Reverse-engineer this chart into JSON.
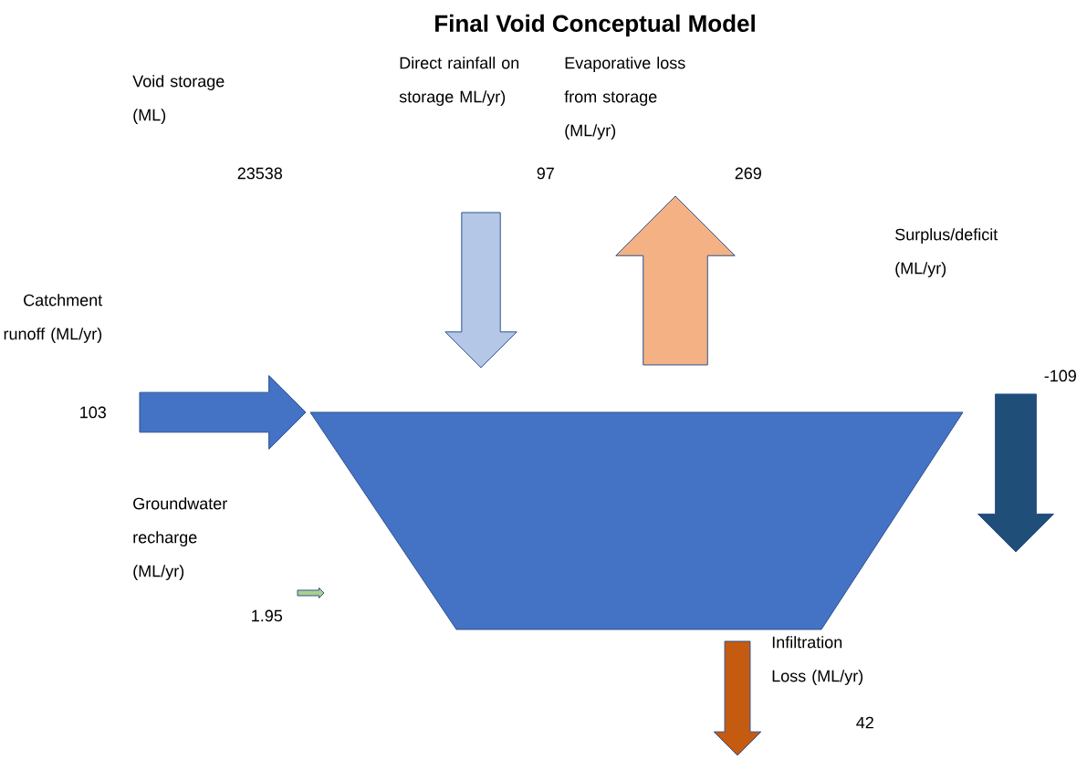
{
  "chart_data": {
    "type": "other",
    "title": "Final Void Conceptual Model",
    "categories": [
      "Void storage (ML)",
      "Direct rainfall on storage ML/yr)",
      "Evaporative loss from storage (ML/yr)",
      "Surplus/deficit (ML/yr)",
      "Catchment runoff (ML/yr)",
      "Groundwater recharge (ML/yr)",
      "Infiltration Loss (ML/yr)"
    ],
    "values": [
      23538,
      97,
      269,
      -109,
      103,
      1.95,
      42
    ],
    "colors": [
      "#4472c4",
      "#b4c7e7",
      "#f4b183",
      "#1f4e79",
      "#4472c4",
      "#a9d18e",
      "#c55a11"
    ],
    "data_labels": true
  }
}
